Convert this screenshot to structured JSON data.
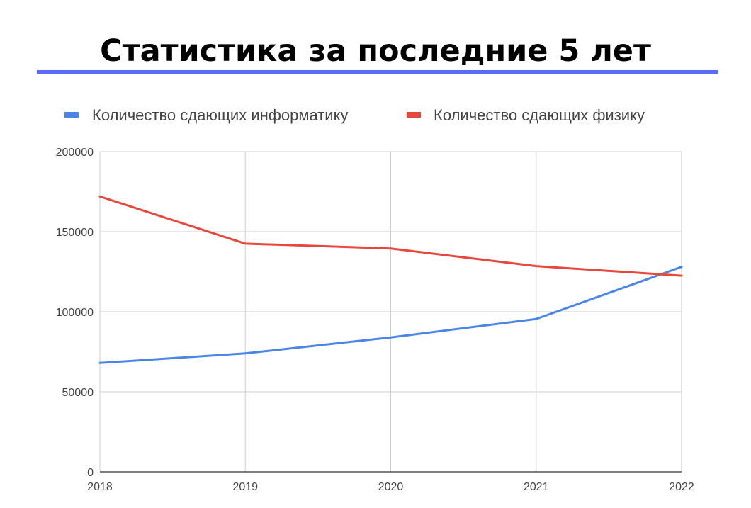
{
  "header": {
    "title": "Статистика за последние 5 лет",
    "underline_color": "#5a6cf5"
  },
  "chart_data": {
    "type": "line",
    "title": "",
    "xlabel": "",
    "ylabel": "",
    "x": [
      "2018",
      "2019",
      "2020",
      "2021",
      "2022"
    ],
    "y_ticks": [
      "0",
      "50000",
      "100000",
      "150000",
      "200000"
    ],
    "ylim": [
      0,
      200000
    ],
    "grid": true,
    "legend_position": "top",
    "series": [
      {
        "name": "Количество сдающих информатику",
        "color": "#4a86e8",
        "values": [
          68000,
          74000,
          84000,
          95500,
          128000
        ]
      },
      {
        "name": "Количество сдающих физику",
        "color": "#e8473b",
        "values": [
          172000,
          142500,
          139500,
          128500,
          122500
        ]
      }
    ]
  }
}
